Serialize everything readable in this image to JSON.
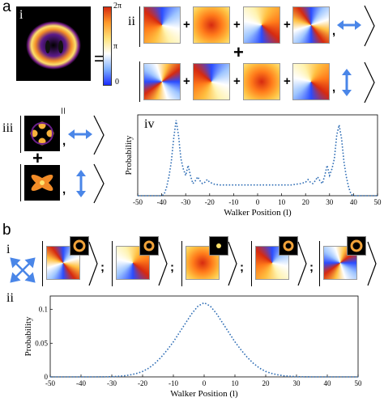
{
  "panel_labels": {
    "a": "a",
    "b": "b",
    "i": "i",
    "ii": "ii",
    "iii": "iii",
    "iv": "iv",
    "b_i": "i",
    "b_ii": "ii"
  },
  "symbols": {
    "equals": "=",
    "equals_rotated": "=",
    "plus": "+",
    "semicolon": ";",
    "comma": ",",
    "colorbar_top": "2π",
    "colorbar_mid": "π",
    "colorbar_bottom": "0"
  },
  "colors": {
    "series": "#2e6db5",
    "arrow": "#4a86e8",
    "phase_blue": "#2a4cff",
    "phase_yellow": "#ffbf40",
    "phase_red": "#d62a10"
  },
  "chart_data": [
    {
      "id": "a_iv",
      "type": "line",
      "xlabel": "Walker Position (l)",
      "ylabel": "Probability",
      "xlim": [
        -50,
        50
      ],
      "ylim": [
        0,
        0.12
      ],
      "xticks": [
        -50,
        -40,
        -30,
        -20,
        -10,
        0,
        10,
        20,
        30,
        40,
        50
      ],
      "yticks": [],
      "grid": false,
      "x": [
        -50,
        -45,
        -40,
        -39,
        -38,
        -37,
        -36,
        -35,
        -34,
        -33,
        -32,
        -31,
        -30,
        -29,
        -28,
        -27,
        -26,
        -25,
        -24,
        -23,
        -22,
        -21,
        -20,
        -18,
        -16,
        -14,
        -12,
        -10,
        -8,
        -6,
        -4,
        -2,
        0,
        2,
        4,
        6,
        8,
        10,
        12,
        14,
        16,
        18,
        20,
        21,
        22,
        23,
        24,
        25,
        26,
        27,
        28,
        29,
        30,
        31,
        32,
        33,
        34,
        35,
        36,
        37,
        38,
        39,
        40,
        45,
        50
      ],
      "y": [
        0,
        0,
        0,
        0.002,
        0.012,
        0.028,
        0.05,
        0.085,
        0.112,
        0.09,
        0.055,
        0.04,
        0.03,
        0.045,
        0.03,
        0.018,
        0.022,
        0.028,
        0.022,
        0.018,
        0.02,
        0.024,
        0.02,
        0.017,
        0.016,
        0.016,
        0.016,
        0.016,
        0.016,
        0.016,
        0.016,
        0.016,
        0.016,
        0.016,
        0.016,
        0.016,
        0.016,
        0.016,
        0.016,
        0.016,
        0.017,
        0.018,
        0.02,
        0.024,
        0.02,
        0.018,
        0.022,
        0.028,
        0.022,
        0.018,
        0.03,
        0.045,
        0.03,
        0.04,
        0.055,
        0.09,
        0.105,
        0.085,
        0.05,
        0.028,
        0.012,
        0.002,
        0,
        0,
        0
      ]
    },
    {
      "id": "b_ii",
      "type": "line",
      "xlabel": "Walker Position (l)",
      "ylabel": "Probability",
      "xlim": [
        -50,
        50
      ],
      "ylim": [
        0,
        0.12
      ],
      "xticks": [
        -50,
        -40,
        -30,
        -20,
        -10,
        0,
        10,
        20,
        30,
        40,
        50
      ],
      "yticks": [
        0,
        0.05,
        0.1
      ],
      "ytick_labels": [
        "0",
        "0.05",
        "0.1"
      ],
      "grid": false,
      "x": [
        -50,
        -45,
        -40,
        -35,
        -30,
        -28,
        -26,
        -24,
        -22,
        -20,
        -18,
        -16,
        -14,
        -12,
        -10,
        -8,
        -6,
        -4,
        -2,
        0,
        2,
        4,
        6,
        8,
        10,
        12,
        14,
        16,
        18,
        20,
        22,
        24,
        26,
        28,
        30,
        35,
        40,
        45,
        50
      ],
      "y": [
        0,
        0,
        0,
        0,
        0.0003,
        0.0008,
        0.0016,
        0.003,
        0.005,
        0.008,
        0.013,
        0.02,
        0.029,
        0.04,
        0.052,
        0.066,
        0.08,
        0.094,
        0.105,
        0.11,
        0.105,
        0.094,
        0.08,
        0.066,
        0.052,
        0.04,
        0.029,
        0.02,
        0.013,
        0.008,
        0.005,
        0.003,
        0.0016,
        0.0008,
        0.0003,
        0,
        0,
        0,
        0
      ]
    }
  ]
}
